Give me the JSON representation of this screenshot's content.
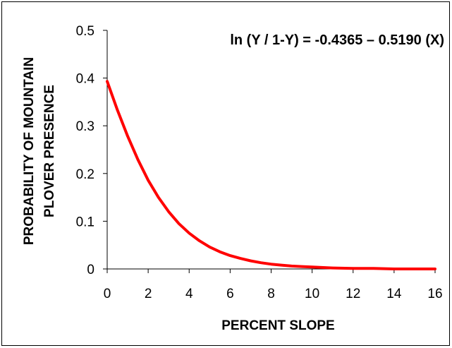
{
  "chart_data": {
    "type": "line",
    "annotation": "ln (Y / 1-Y) = -0.4365 – 0.5190 (X)",
    "xlabel": "PERCENT SLOPE",
    "ylabel_lines": [
      "PROBABILITY OF MOUNTAIN",
      "PLOVER PRESENCE"
    ],
    "xlim": [
      0,
      16
    ],
    "ylim": [
      0,
      0.5
    ],
    "x_ticks": [
      "0",
      "2",
      "4",
      "6",
      "8",
      "10",
      "12",
      "14",
      "16"
    ],
    "y_ticks": [
      "0",
      "0.1",
      "0.2",
      "0.3",
      "0.4",
      "0.5"
    ],
    "grid": false,
    "legend": "none",
    "series": [
      {
        "color": "#ff0000",
        "x": [
          0,
          0.5,
          1,
          1.5,
          2,
          2.5,
          3,
          3.5,
          4,
          4.5,
          5,
          5.5,
          6,
          6.5,
          7,
          7.5,
          8,
          8.5,
          9,
          9.5,
          10,
          11,
          12,
          13,
          14,
          15,
          16
        ],
        "y": [
          0.393,
          0.333,
          0.278,
          0.229,
          0.186,
          0.15,
          0.12,
          0.095,
          0.075,
          0.059,
          0.046,
          0.036,
          0.028,
          0.022,
          0.017,
          0.013,
          0.01,
          0.008,
          0.006,
          0.005,
          0.004,
          0.002,
          0.001,
          0.001,
          0.0,
          0.0,
          0.0
        ]
      }
    ]
  }
}
